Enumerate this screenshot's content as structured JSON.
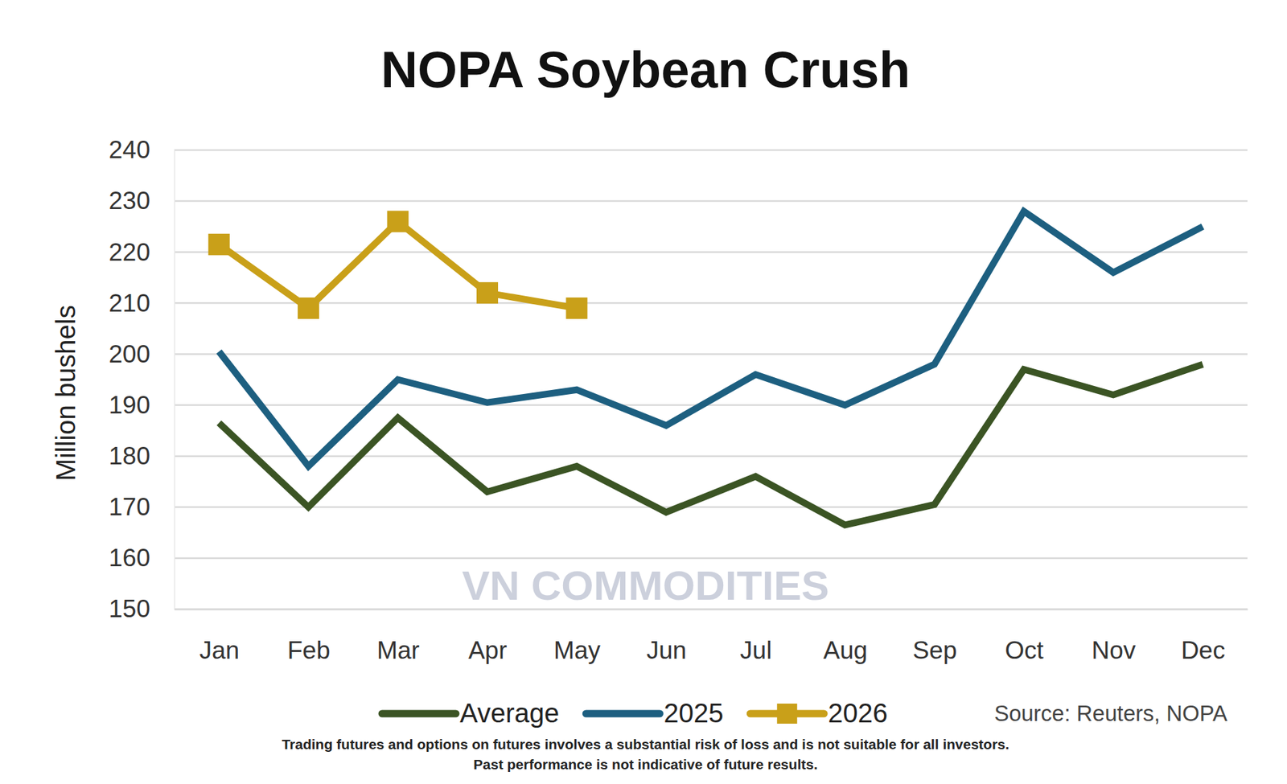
{
  "chart_data": {
    "type": "line",
    "title": "NOPA Soybean Crush",
    "y_label": "Million bushels",
    "categories": [
      "Jan",
      "Feb",
      "Mar",
      "Apr",
      "May",
      "Jun",
      "Jul",
      "Aug",
      "Sep",
      "Oct",
      "Nov",
      "Dec"
    ],
    "series": [
      {
        "name": "Average",
        "color": "#3b5424",
        "line_style": "solid",
        "values": [
          186.5,
          170,
          187.5,
          173,
          178,
          169,
          176,
          166.5,
          170.5,
          197,
          192,
          198
        ]
      },
      {
        "name": "2025",
        "color": "#1d5f80",
        "line_style": "solid",
        "values": [
          200.5,
          178,
          195,
          190.5,
          193,
          186,
          196,
          190,
          198,
          228,
          216,
          225
        ]
      },
      {
        "name": "2026",
        "color": "#c9a019",
        "line_style": "solid",
        "marker": "square",
        "values": [
          221.5,
          209,
          226,
          212,
          209,
          null,
          null,
          null,
          null,
          null,
          null,
          null
        ]
      }
    ],
    "ylim": [
      150,
      240
    ],
    "yticks": [
      150,
      160,
      170,
      180,
      190,
      200,
      210,
      220,
      230,
      240
    ],
    "grid": true,
    "legend": "bottom",
    "source": "Source: Reuters, NOPA",
    "watermark": "VN COMMODITIES",
    "disclaimer": [
      "Trading futures and options on futures involves a substantial risk of loss and is not suitable for all investors.",
      "Past performance is not indicative of future results."
    ]
  }
}
